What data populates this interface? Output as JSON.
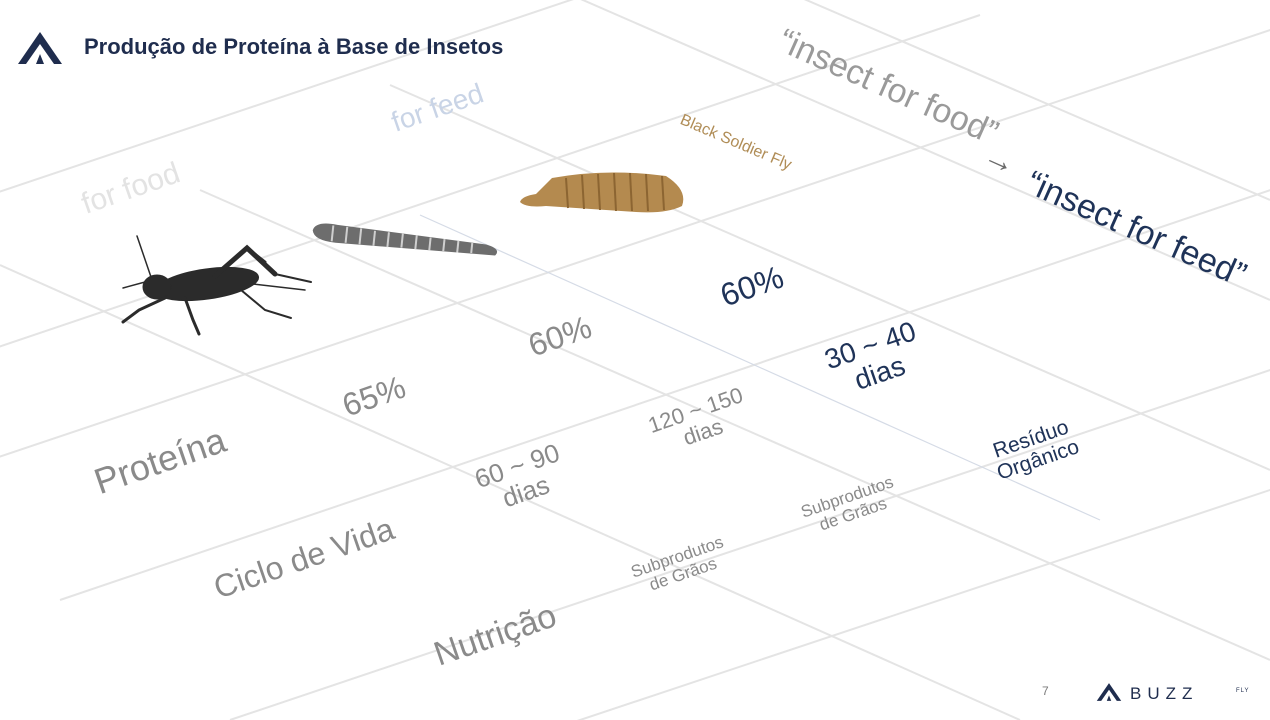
{
  "header": {
    "title": "Produção de Proteína à Base de Insetos"
  },
  "columns": {
    "food_label": "for food",
    "feed_label": "for feed",
    "bsf_label": "Black Soldier Fly"
  },
  "tagline": {
    "from": "“insect for food”",
    "arrow": "→",
    "to": "“insect for feed”"
  },
  "rows": {
    "protein_label": "Proteína",
    "lifecycle_label": "Ciclo de Vida",
    "nutrition_label": "Nutrição"
  },
  "cricket": {
    "protein": "65%",
    "lifecycle_line1": "60 ~ 90",
    "lifecycle_line2": "dias",
    "nutrition_line1": "Subprodutos",
    "nutrition_line2": "de Grãos"
  },
  "mealworm": {
    "protein": "60%",
    "lifecycle_line1": "120 ~ 150",
    "lifecycle_line2": "dias",
    "nutrition_line1": "Subprodutos",
    "nutrition_line2": "de Grãos"
  },
  "bsf": {
    "protein": "60%",
    "lifecycle_line1": "30 ~ 40",
    "lifecycle_line2": "dias",
    "nutrition_line1": "Resíduo",
    "nutrition_line2": "Orgânico"
  },
  "footer": {
    "page_number": "7",
    "brand": "BUZZ",
    "brand_suffix": "FLY"
  },
  "icons": {
    "logo": "buzzfly-logo-icon",
    "cricket": "cricket-icon",
    "mealworm": "mealworm-icon",
    "bsf_larva": "black-soldier-fly-larva-icon"
  },
  "colors": {
    "navy": "#1f2d4e",
    "grey_text": "#8a8a8a",
    "bsf_label": "#b08d57"
  }
}
